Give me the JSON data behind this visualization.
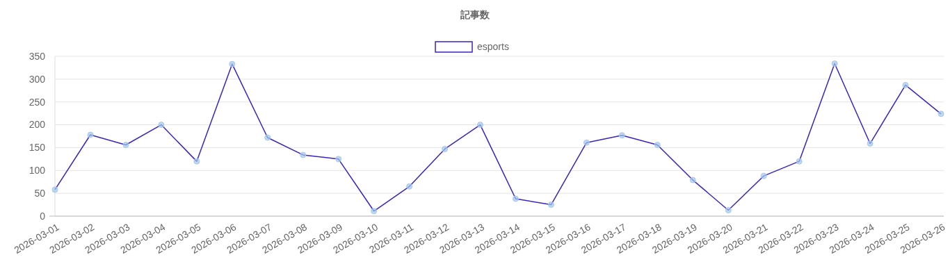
{
  "chart_data": {
    "type": "line",
    "title": "記事数",
    "categories": [
      "2026-03-01",
      "2026-03-02",
      "2026-03-03",
      "2026-03-04",
      "2026-03-05",
      "2026-03-06",
      "2026-03-07",
      "2026-03-08",
      "2026-03-09",
      "2026-03-10",
      "2026-03-11",
      "2026-03-12",
      "2026-03-13",
      "2026-03-14",
      "2026-03-15",
      "2026-03-16",
      "2026-03-17",
      "2026-03-18",
      "2026-03-19",
      "2026-03-20",
      "2026-03-21",
      "2026-03-22",
      "2026-03-23",
      "2026-03-24",
      "2026-03-25",
      "2026-03-26"
    ],
    "series": [
      {
        "name": "esports",
        "color": "#3a22c9",
        "values": [
          58,
          178,
          156,
          200,
          120,
          333,
          172,
          134,
          125,
          11,
          65,
          147,
          200,
          38,
          25,
          161,
          177,
          156,
          79,
          13,
          88,
          120,
          334,
          159,
          287,
          224
        ]
      }
    ],
    "ylim": [
      0,
      350
    ],
    "yticks": [
      0,
      50,
      100,
      150,
      200,
      250,
      300,
      350
    ],
    "grid": "y",
    "legend": "top",
    "marker": "circle",
    "line_style": "solid"
  }
}
